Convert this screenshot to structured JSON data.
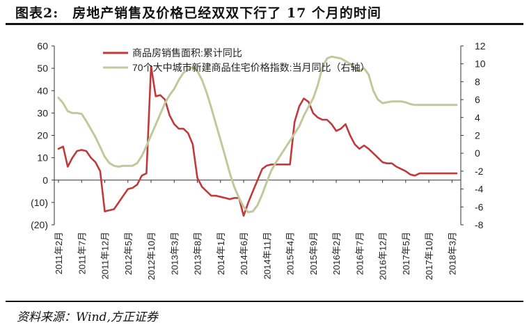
{
  "title": "图表2:　房地产销售及价格已经双双下行了 17 个月的时间",
  "source": "资料来源：Wind,方正证券",
  "chart_data": {
    "type": "line",
    "title": "图表2:　房地产销售及价格已经双双下行了 17 个月的时间",
    "x_tick_labels": [
      "2011年2月",
      "2011年7月",
      "2011年12月",
      "2012年5月",
      "2012年10月",
      "2013年3月",
      "2013年8月",
      "2014年1月",
      "2014年6月",
      "2014年11月",
      "2015年4月",
      "2015年9月",
      "2016年2月",
      "2016年7月",
      "2016年12月",
      "2017年5月",
      "2017年10月",
      "2018年3月"
    ],
    "y_left": {
      "ylim": [
        -20,
        60
      ],
      "ticks": [
        "(20)",
        "(10)",
        "0",
        "10",
        "20",
        "30",
        "40",
        "50",
        "60"
      ]
    },
    "y_right": {
      "ylim": [
        -8,
        12
      ],
      "ticks": [
        "-8",
        "-6",
        "-4",
        "-2",
        "0",
        "2",
        "4",
        "6",
        "8",
        "10",
        "12"
      ]
    },
    "legend_position": "top-center",
    "grid": false,
    "series": [
      {
        "name": "商品房销售面积:累计同比",
        "axis": "left",
        "color": "#c0393b",
        "x": [
          "2011-02",
          "2011-03",
          "2011-04",
          "2011-05",
          "2011-06",
          "2011-07",
          "2011-08",
          "2011-09",
          "2011-10",
          "2011-11",
          "2011-12",
          "2012-01",
          "2012-02",
          "2012-03",
          "2012-04",
          "2012-05",
          "2012-06",
          "2012-07",
          "2012-08",
          "2012-09",
          "2012-10",
          "2012-11",
          "2012-12",
          "2013-01",
          "2013-02",
          "2013-03",
          "2013-04",
          "2013-05",
          "2013-06",
          "2013-07",
          "2013-08",
          "2013-09",
          "2013-10",
          "2013-11",
          "2013-12",
          "2014-01",
          "2014-02",
          "2014-03",
          "2014-04",
          "2014-05",
          "2014-06",
          "2014-07",
          "2014-08",
          "2014-09",
          "2014-10",
          "2014-11",
          "2014-12",
          "2015-01",
          "2015-02",
          "2015-03",
          "2015-04",
          "2015-05",
          "2015-06",
          "2015-07",
          "2015-08",
          "2015-09",
          "2015-10",
          "2015-11",
          "2015-12",
          "2016-01",
          "2016-02",
          "2016-03",
          "2016-04",
          "2016-05",
          "2016-06",
          "2016-07",
          "2016-08",
          "2016-09",
          "2016-10",
          "2016-11",
          "2016-12",
          "2017-01",
          "2017-02",
          "2017-03",
          "2017-04",
          "2017-05",
          "2017-06",
          "2017-07",
          "2017-08",
          "2017-09",
          "2017-10",
          "2017-11",
          "2017-12",
          "2018-01",
          "2018-02",
          "2018-03",
          "2018-04"
        ],
        "values": [
          14,
          15,
          6,
          10,
          13,
          13.5,
          13,
          10,
          8,
          4,
          -14,
          -13.5,
          -13,
          -10,
          -7,
          -4,
          -3.5,
          -2,
          2,
          3,
          51,
          37.5,
          38,
          36,
          29,
          25,
          23,
          23,
          21,
          16,
          1,
          -3,
          -5,
          -7,
          -7,
          -7.5,
          -8,
          -8.5,
          -8,
          -8,
          -16,
          -10,
          -5,
          0,
          5,
          6.5,
          7,
          7,
          7,
          7,
          7,
          26,
          33,
          36.5,
          35,
          30,
          28,
          27,
          27,
          25,
          22,
          23,
          25,
          20,
          16,
          14,
          15.5,
          14,
          12,
          10,
          8,
          7.5,
          7.5,
          6,
          5,
          4,
          2.5,
          2,
          3,
          3,
          3,
          3,
          3,
          3,
          3,
          3,
          3
        ]
      },
      {
        "name": "70个大中城市新建商品住宅价格指数:当月同比（右轴）",
        "axis": "right",
        "color": "#bfc99b",
        "x": [
          "2011-02",
          "2011-03",
          "2011-04",
          "2011-05",
          "2011-06",
          "2011-07",
          "2011-08",
          "2011-09",
          "2011-10",
          "2011-11",
          "2011-12",
          "2012-01",
          "2012-02",
          "2012-03",
          "2012-04",
          "2012-05",
          "2012-06",
          "2012-07",
          "2012-08",
          "2012-09",
          "2012-10",
          "2012-11",
          "2012-12",
          "2013-01",
          "2013-02",
          "2013-03",
          "2013-04",
          "2013-05",
          "2013-06",
          "2013-07",
          "2013-08",
          "2013-09",
          "2013-10",
          "2013-11",
          "2013-12",
          "2014-01",
          "2014-02",
          "2014-03",
          "2014-04",
          "2014-05",
          "2014-06",
          "2014-07",
          "2014-08",
          "2014-09",
          "2014-10",
          "2014-11",
          "2014-12",
          "2015-01",
          "2015-02",
          "2015-03",
          "2015-04",
          "2015-05",
          "2015-06",
          "2015-07",
          "2015-08",
          "2015-09",
          "2015-10",
          "2015-11",
          "2015-12",
          "2016-01",
          "2016-02",
          "2016-03",
          "2016-04",
          "2016-05",
          "2016-06",
          "2016-07",
          "2016-08",
          "2016-09",
          "2016-10",
          "2016-11",
          "2016-12",
          "2017-01",
          "2017-02",
          "2017-03",
          "2017-04",
          "2017-05",
          "2017-06",
          "2017-07",
          "2017-08",
          "2017-09",
          "2017-10",
          "2017-11",
          "2017-12",
          "2018-01",
          "2018-02",
          "2018-03",
          "2018-04"
        ],
        "values": [
          6.2,
          5.6,
          4.7,
          4.5,
          4.5,
          4.4,
          3.6,
          2.7,
          1.8,
          0.7,
          -0.4,
          -1.1,
          -1.4,
          -1.5,
          -1.4,
          -1.4,
          -1.4,
          -1.1,
          -0.3,
          0.8,
          2.0,
          3.2,
          4.4,
          5.6,
          6.5,
          7.2,
          8.2,
          9.0,
          9.4,
          9.6,
          9.2,
          8.2,
          6.8,
          5.1,
          3.3,
          1.5,
          -0.3,
          -2.2,
          -3.8,
          -5.0,
          -6.0,
          -6.6,
          -6.5,
          -5.8,
          -4.6,
          -3.2,
          -1.9,
          -1.0,
          -0.2,
          0.6,
          1.4,
          2.2,
          3.0,
          4.2,
          5.2,
          6.1,
          7.6,
          9.6,
          10.6,
          10.8,
          10.7,
          10.6,
          10.3,
          10.0,
          9.5,
          9.2,
          9.5,
          8.8,
          7.0,
          6.0,
          5.6,
          5.7,
          5.8,
          5.8,
          5.8,
          5.7,
          5.5,
          5.4,
          5.4,
          5.4,
          5.4,
          5.4,
          5.4,
          5.4,
          5.4,
          5.4,
          5.4
        ]
      }
    ]
  }
}
